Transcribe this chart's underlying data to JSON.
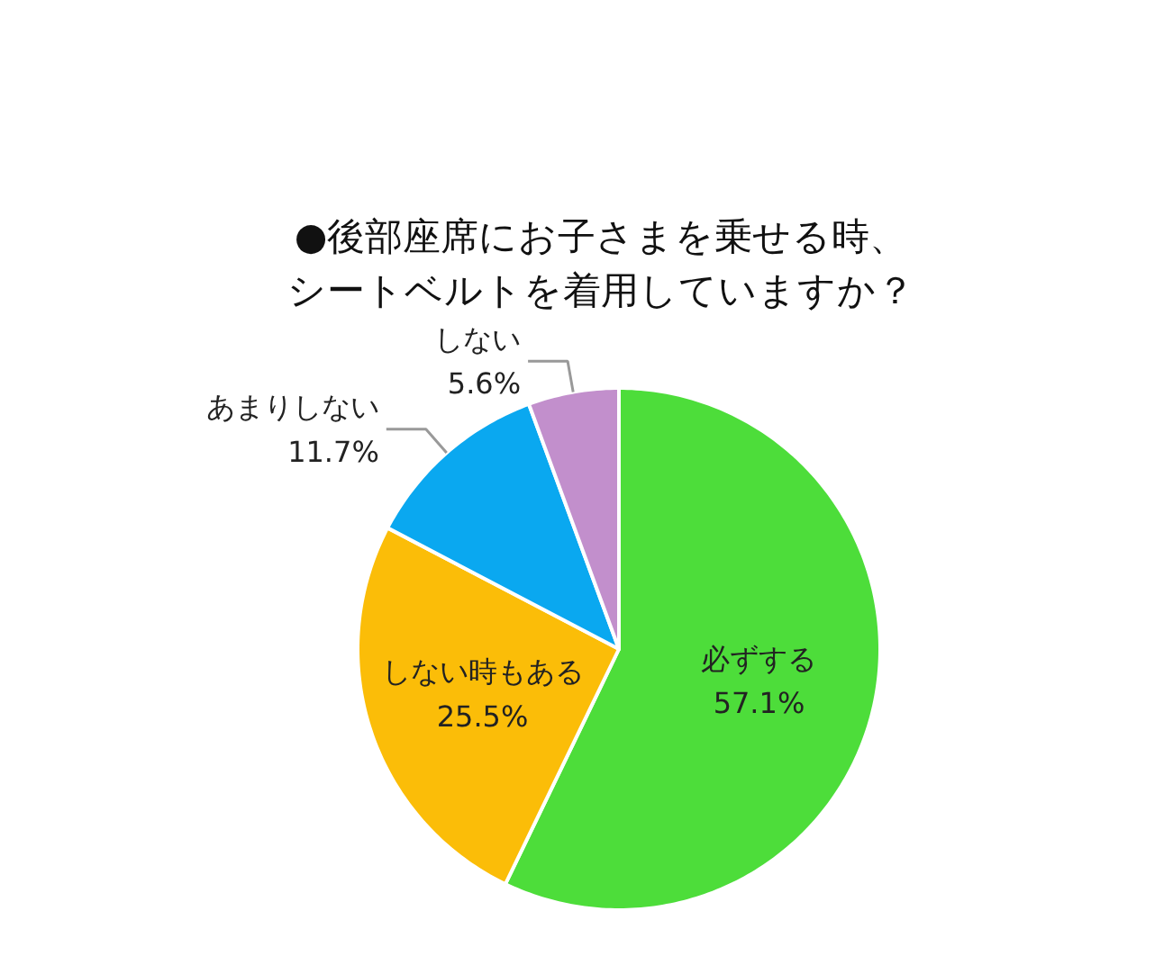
{
  "chart_data": {
    "type": "pie",
    "title": "●後部座席にお子さまを乗せる時、シートベルトを着用していますか？",
    "categories": [
      "必ずする",
      "しない時もある",
      "あまりしない",
      "しない"
    ],
    "values": [
      57.1,
      25.5,
      11.7,
      5.6
    ],
    "value_labels": [
      "57.1%",
      "25.5%",
      "11.7%",
      "5.6%"
    ],
    "colors": [
      "#4ddd3a",
      "#fbbd08",
      "#0aa8f0",
      "#c28fcc"
    ]
  }
}
